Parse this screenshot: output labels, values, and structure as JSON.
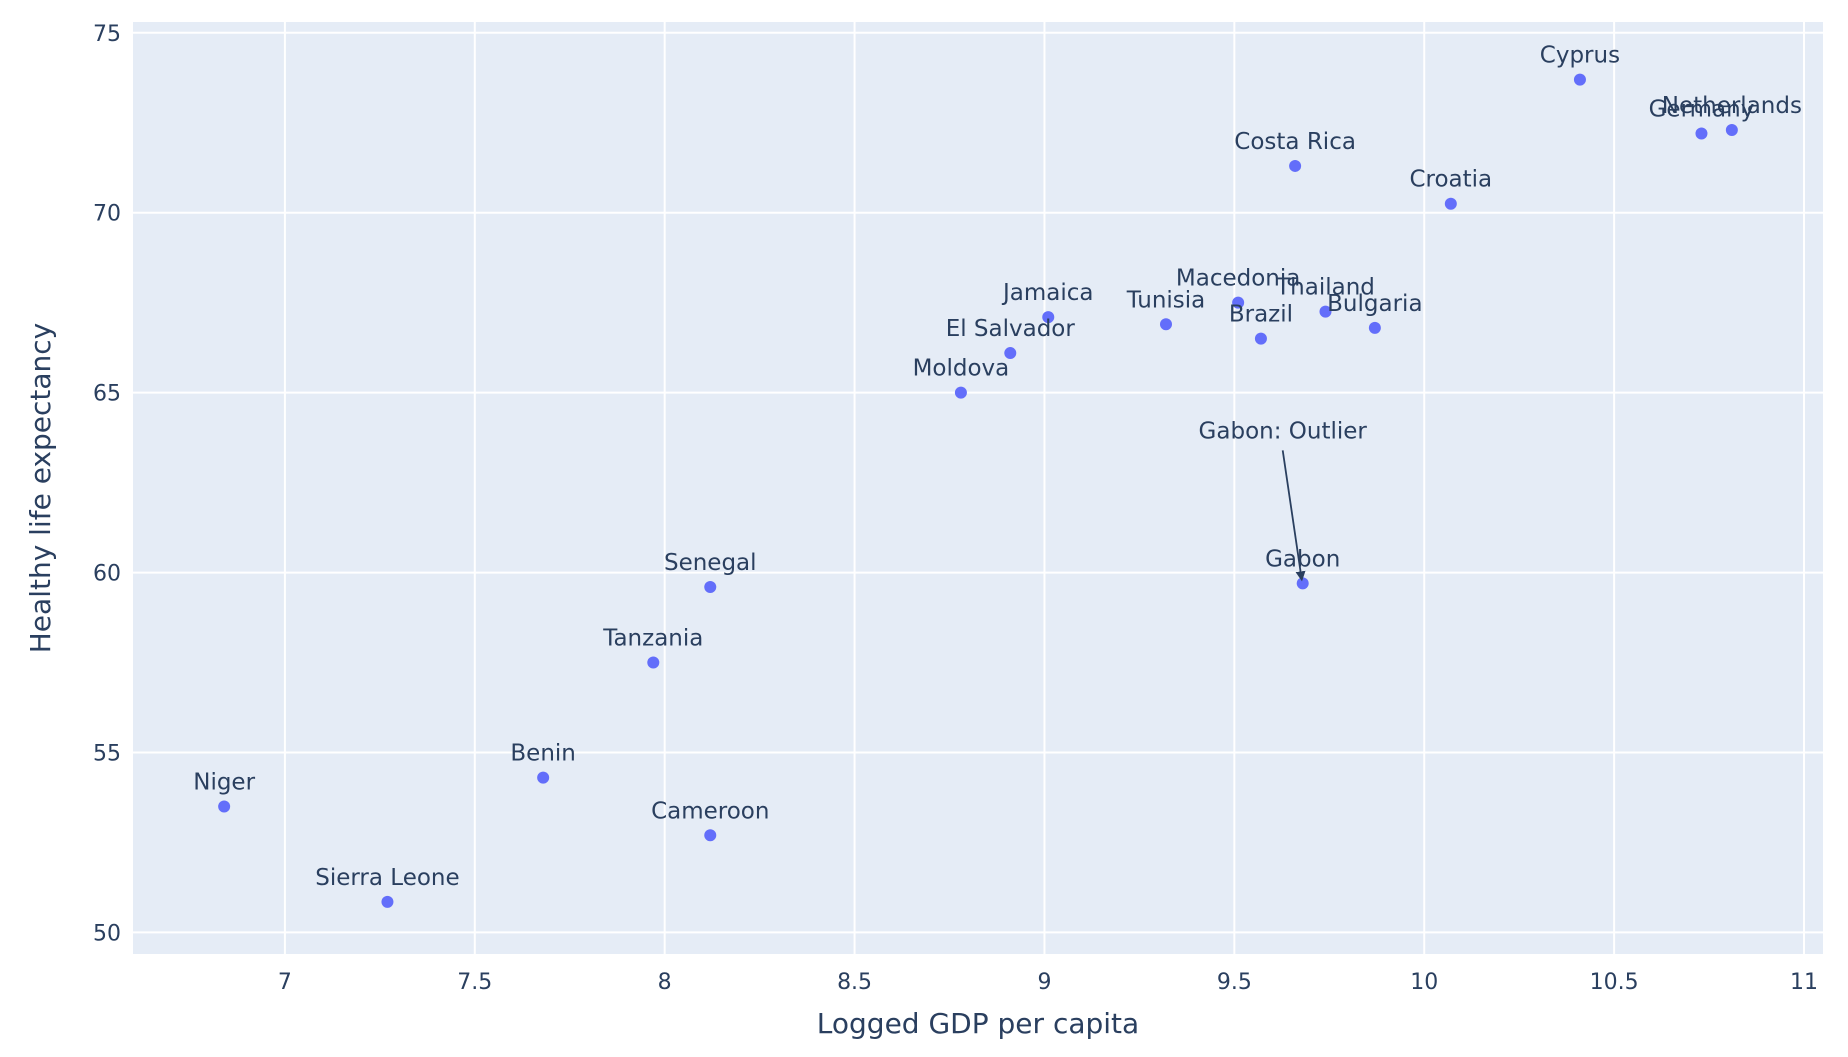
{
  "colors": {
    "plot_background": "#e5ecf6",
    "grid": "#ffffff",
    "marker": "#636efa",
    "text": "#2a3f5f",
    "arrow": "#2a3f5f"
  },
  "chart_data": {
    "type": "scatter",
    "xlabel": "Logged GDP per capita",
    "ylabel": "Healthy life expectancy",
    "xlim": [
      6.6,
      11.05
    ],
    "ylim": [
      49.4,
      75.3
    ],
    "x_ticks": [
      7,
      7.5,
      8,
      8.5,
      9,
      9.5,
      10,
      10.5,
      11
    ],
    "x_tick_labels": [
      "7",
      "7.5",
      "8",
      "8.5",
      "9",
      "9.5",
      "10",
      "10.5",
      "11"
    ],
    "y_ticks": [
      50,
      55,
      60,
      65,
      70,
      75
    ],
    "y_tick_labels": [
      "50",
      "55",
      "60",
      "65",
      "70",
      "75"
    ],
    "grid": true,
    "legend": false,
    "points": [
      {
        "label": "Niger",
        "x": 6.84,
        "y": 53.5
      },
      {
        "label": "Sierra Leone",
        "x": 7.27,
        "y": 50.85
      },
      {
        "label": "Benin",
        "x": 7.68,
        "y": 54.3
      },
      {
        "label": "Tanzania",
        "x": 7.97,
        "y": 57.5
      },
      {
        "label": "Senegal",
        "x": 8.12,
        "y": 59.6
      },
      {
        "label": "Cameroon",
        "x": 8.12,
        "y": 52.7
      },
      {
        "label": "Moldova",
        "x": 8.78,
        "y": 65.0
      },
      {
        "label": "El Salvador",
        "x": 8.91,
        "y": 66.1
      },
      {
        "label": "Jamaica",
        "x": 9.01,
        "y": 67.1
      },
      {
        "label": "Tunisia",
        "x": 9.32,
        "y": 66.9
      },
      {
        "label": "Macedonia",
        "x": 9.51,
        "y": 67.5
      },
      {
        "label": "Brazil",
        "x": 9.57,
        "y": 66.5
      },
      {
        "label": "Costa Rica",
        "x": 9.66,
        "y": 71.3
      },
      {
        "label": "Gabon",
        "x": 9.68,
        "y": 59.7
      },
      {
        "label": "Thailand",
        "x": 9.74,
        "y": 67.25
      },
      {
        "label": "Bulgaria",
        "x": 9.87,
        "y": 66.8
      },
      {
        "label": "Croatia",
        "x": 10.07,
        "y": 70.25
      },
      {
        "label": "Cyprus",
        "x": 10.41,
        "y": 73.7
      },
      {
        "label": "Germany",
        "x": 10.73,
        "y": 72.2
      },
      {
        "label": "Netherlands",
        "x": 10.81,
        "y": 72.3
      }
    ],
    "annotations": [
      {
        "text": "Gabon: Outlier",
        "x": 9.68,
        "y": 59.7,
        "arrow": true
      }
    ]
  }
}
